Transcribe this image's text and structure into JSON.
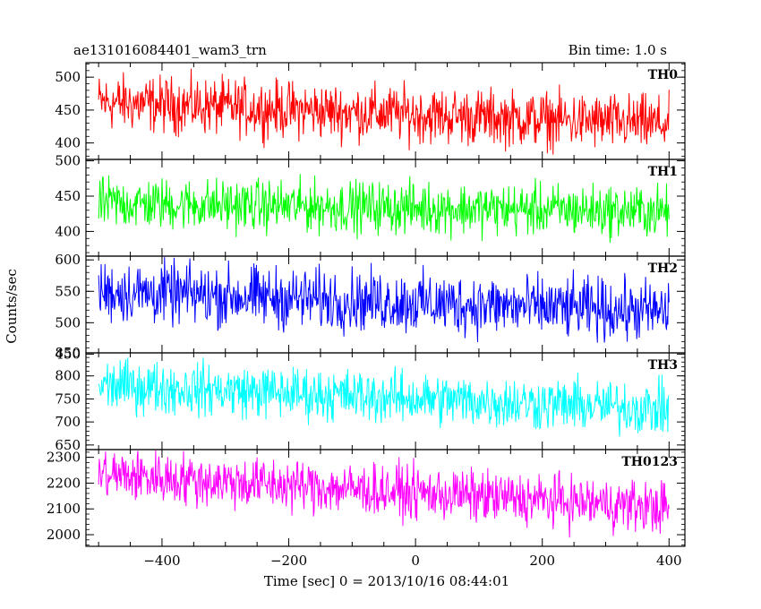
{
  "header": {
    "title": "ae131016084401_wam3_trn",
    "bin_time": "Bin time: 1.0 s"
  },
  "chart_data": {
    "type": "line",
    "xlabel": "Time [sec] 0 = 2013/10/16 08:44:01",
    "ylabel": "Counts/sec",
    "xlim": [
      -520,
      425
    ],
    "x_ticks": [
      -400,
      -200,
      0,
      200,
      400
    ],
    "x_range": [
      -500,
      400
    ],
    "bin_time_s": 1.0,
    "panels": [
      {
        "name": "TH0",
        "color": "#ff0000",
        "ylim": [
          375,
          522
        ],
        "y_ticks": [
          400,
          450,
          500
        ],
        "trend": [
          [
            -500,
            462
          ],
          [
            400,
            428
          ]
        ],
        "noise_amplitude": 21,
        "observed_range": [
          372,
          522
        ]
      },
      {
        "name": "TH1",
        "color": "#00ff00",
        "ylim": [
          365,
          502
        ],
        "y_ticks": [
          400,
          450,
          500
        ],
        "trend": [
          [
            -500,
            440
          ],
          [
            400,
            428
          ]
        ],
        "noise_amplitude": 18,
        "observed_range": [
          373,
          500
        ]
      },
      {
        "name": "TH2",
        "color": "#0000ff",
        "ylim": [
          452,
          606
        ],
        "y_ticks": [
          450,
          500,
          550,
          600
        ],
        "trend": [
          [
            -500,
            550
          ],
          [
            400,
            517
          ]
        ],
        "noise_amplitude": 24,
        "observed_range": [
          460,
          606
        ]
      },
      {
        "name": "TH3",
        "color": "#00ffff",
        "ylim": [
          640,
          850
        ],
        "y_ticks": [
          650,
          700,
          750,
          800,
          850
        ],
        "trend": [
          [
            -500,
            780
          ],
          [
            400,
            728
          ]
        ],
        "noise_amplitude": 28,
        "observed_range": [
          648,
          850
        ]
      },
      {
        "name": "TH0123",
        "color": "#ff00ff",
        "ylim": [
          1955,
          2330
        ],
        "y_ticks": [
          2000,
          2100,
          2200,
          2300
        ],
        "trend": [
          [
            -500,
            2235
          ],
          [
            400,
            2105
          ]
        ],
        "noise_amplitude": 50,
        "observed_range": [
          1960,
          2330
        ]
      }
    ]
  }
}
